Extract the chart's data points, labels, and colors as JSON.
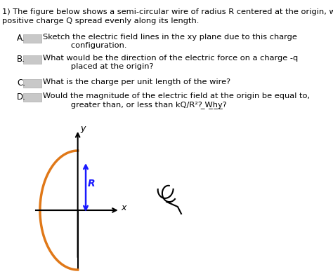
{
  "title_line1": "1) The figure below shows a semi-circular wire of radius R centered at the origin, with uniform",
  "title_line2": "positive charge Q spread evenly along its length.",
  "items": [
    {
      "label": "A.",
      "text": "Sketch the electric field lines in the xy plane due to this charge\n      configuration."
    },
    {
      "label": "B.",
      "text": "What would be the direction of the electric force on a charge -q\n      placed at the origin?"
    },
    {
      "label": "C.",
      "text": "What is the charge per unit length of the wire?"
    },
    {
      "label": "D.",
      "text": "Would the magnitude of the electric field at the origin be equal to,\n      greater than, or less than kQ/R²? Why?"
    }
  ],
  "semicircle_color": "#e07818",
  "arrow_color": "#1a1aff",
  "axis_color": "#000000",
  "background_color": "#ffffff",
  "text_color": "#000000",
  "box_color": "#c8c8c8"
}
